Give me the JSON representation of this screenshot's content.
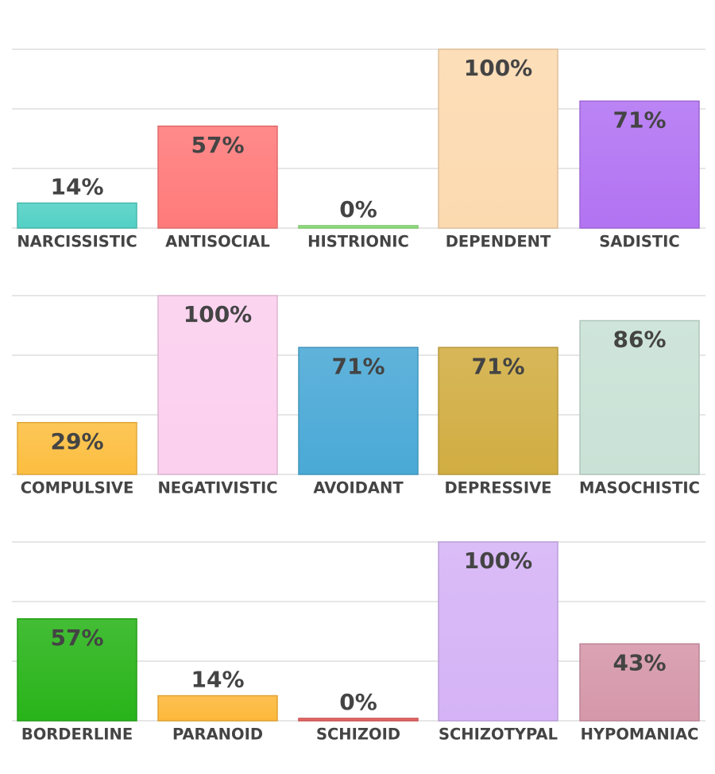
{
  "chart_data": [
    {
      "type": "bar",
      "ylim": [
        0,
        100
      ],
      "grid": true,
      "categories": [
        "NARCISSISTIC",
        "ANTISOCIAL",
        "HISTRIONIC",
        "DEPENDENT",
        "SADISTIC"
      ],
      "values": [
        14,
        57,
        0,
        100,
        71
      ],
      "value_labels": [
        "14%",
        "57%",
        "0%",
        "100%",
        "71%"
      ],
      "colors": [
        "#52d0c4",
        "#ff7a7a",
        "#8fe07a",
        "#fcdab0",
        "#b273f2"
      ]
    },
    {
      "type": "bar",
      "ylim": [
        0,
        100
      ],
      "grid": true,
      "categories": [
        "COMPULSIVE",
        "NEGATIVISTIC",
        "AVOIDANT",
        "DEPRESSIVE",
        "MASOCHISTIC"
      ],
      "values": [
        29,
        100,
        71,
        71,
        86
      ],
      "value_labels": [
        "29%",
        "100%",
        "71%",
        "71%",
        "86%"
      ],
      "colors": [
        "#fcbe40",
        "#fbcfee",
        "#4aa9d6",
        "#d1ad42",
        "#c9e1d6"
      ]
    },
    {
      "type": "bar",
      "ylim": [
        0,
        100
      ],
      "grid": true,
      "categories": [
        "BORDERLINE",
        "PARANOID",
        "SCHIZOID",
        "SCHIZOTYPAL",
        "HYPOMANIAC"
      ],
      "values": [
        57,
        14,
        0,
        100,
        43
      ],
      "value_labels": [
        "57%",
        "14%",
        "0%",
        "100%",
        "43%"
      ],
      "colors": [
        "#29b41a",
        "#fdb83a",
        "#e86060",
        "#d5b3f6",
        "#d597aa"
      ]
    }
  ]
}
